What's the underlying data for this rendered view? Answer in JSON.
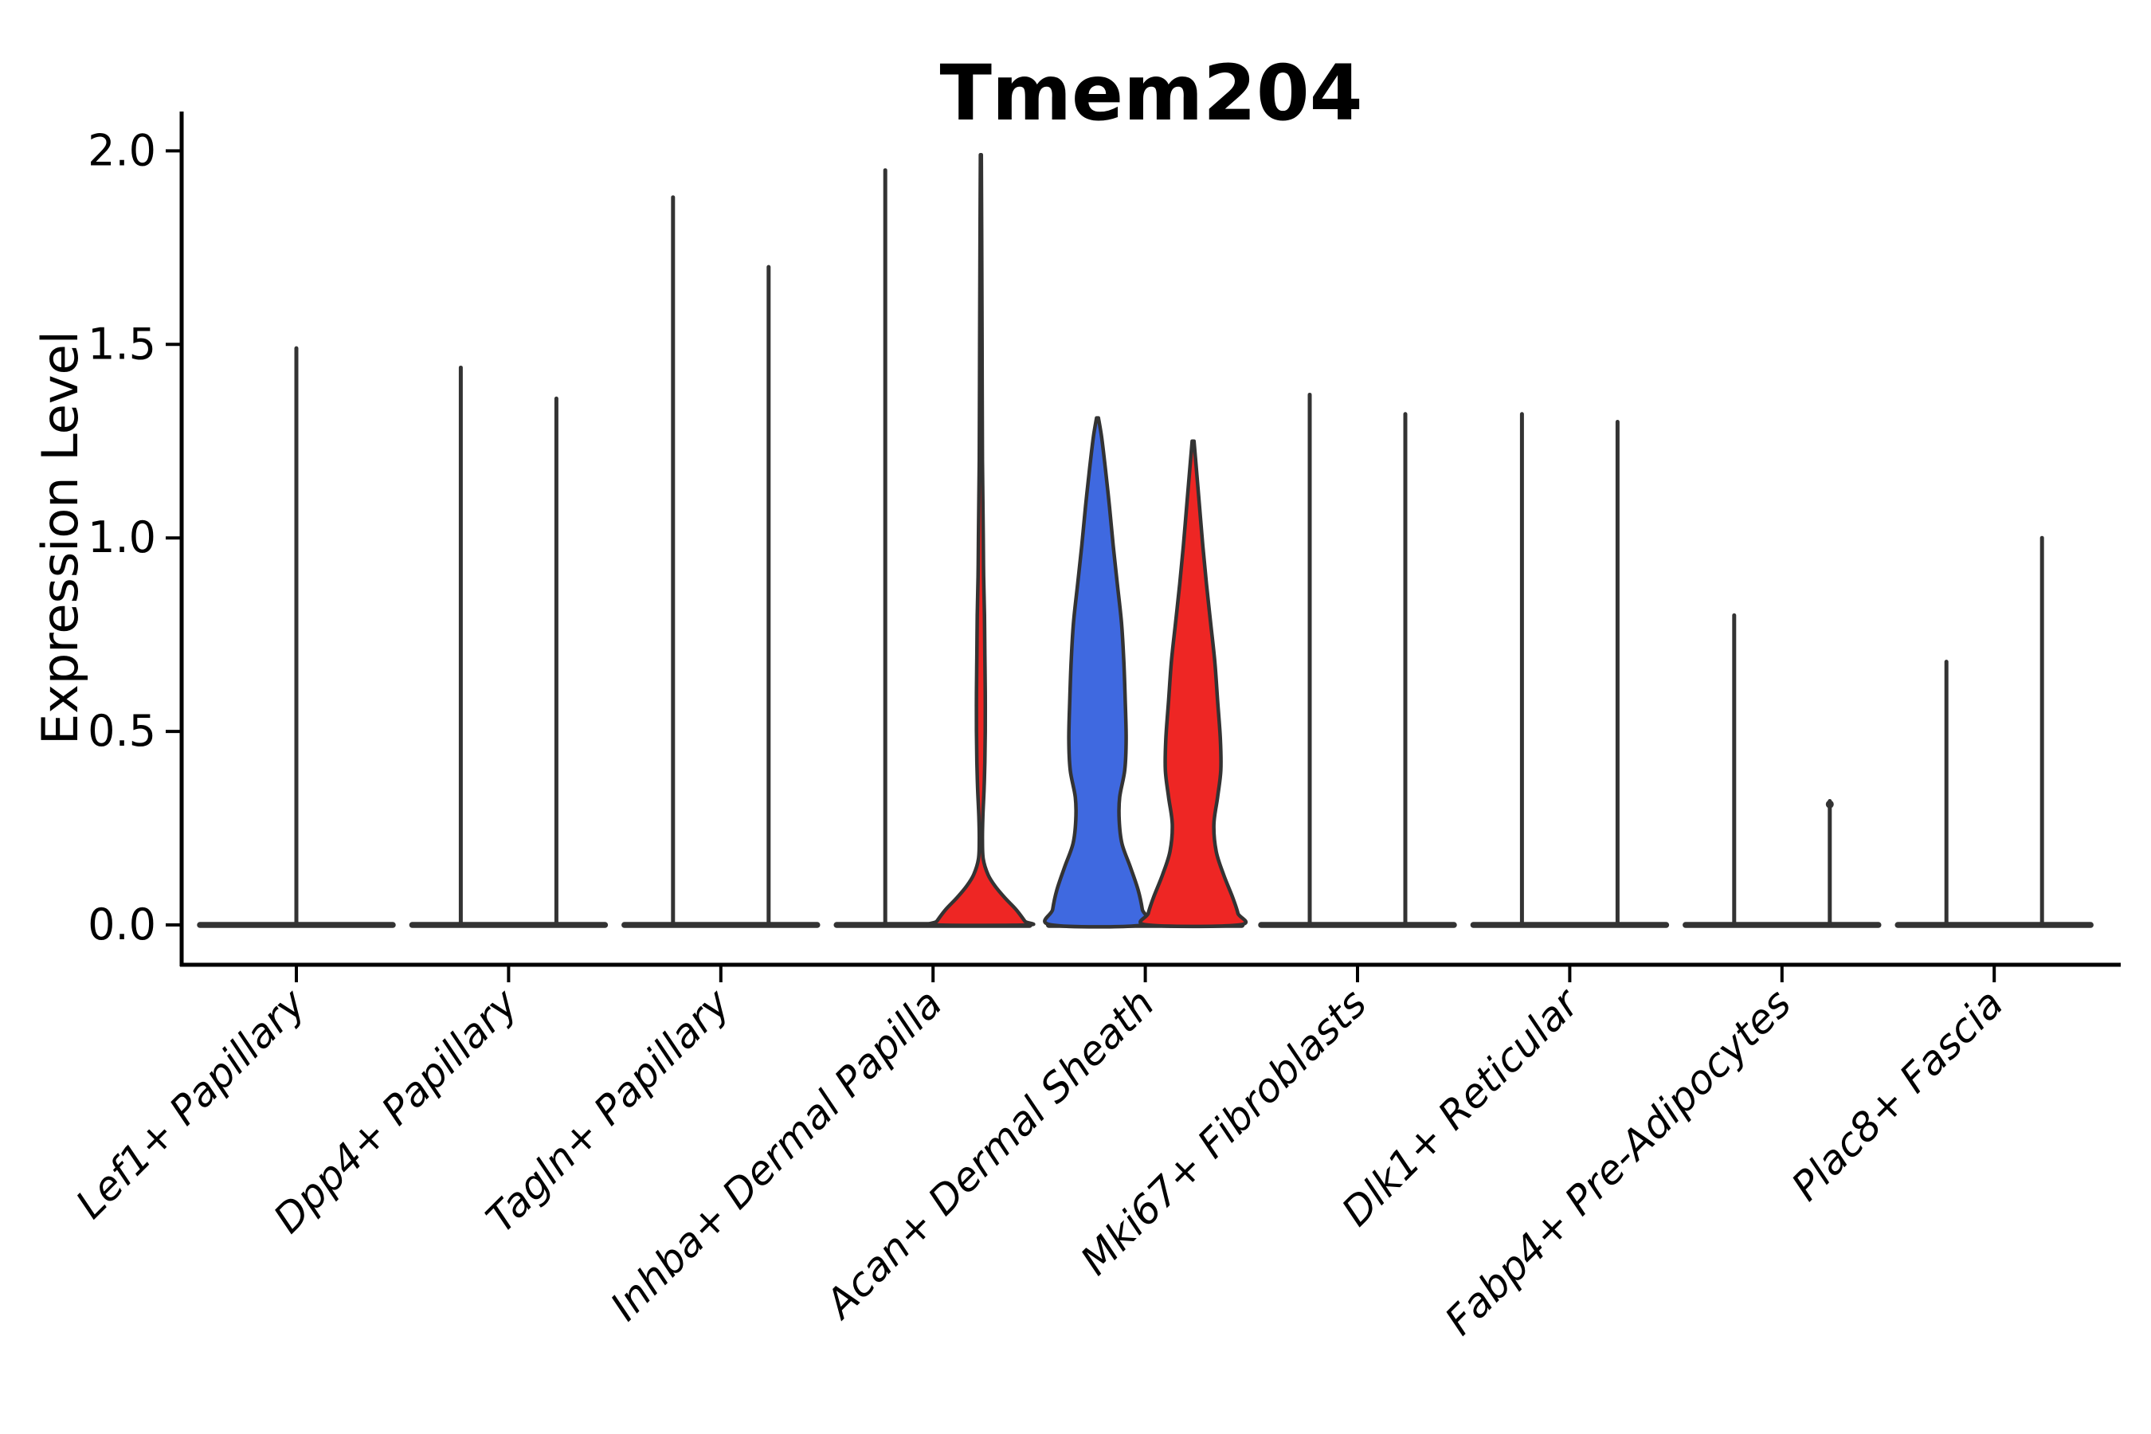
{
  "chart_data": {
    "type": "violin",
    "title": "Tmem204",
    "xlabel": "",
    "ylabel": "Expression Level",
    "ylim": [
      -0.1,
      2.1
    ],
    "yticks": [
      0.0,
      0.5,
      1.0,
      1.5,
      2.0
    ],
    "ytick_labels": [
      "0.0",
      "0.5",
      "1.0",
      "1.5",
      "2.0"
    ],
    "grid": false,
    "legend": "none",
    "colors": {
      "group1_fill": "#3F69E0",
      "group2_fill": "#EE2624",
      "violin_outline": "#333333",
      "axis": "#000000"
    },
    "categories": [
      {
        "label": "Lef1+ Papillary",
        "violins": [
          {
            "group": "group-1",
            "kind": "spike",
            "max": 1.49,
            "span": "full"
          }
        ]
      },
      {
        "label": "Dpp4+ Papillary",
        "violins": [
          {
            "group": "group-1",
            "kind": "spike",
            "max": 1.44
          },
          {
            "group": "group-2",
            "kind": "spike",
            "max": 1.36
          }
        ]
      },
      {
        "label": "Tagln+ Papillary",
        "violins": [
          {
            "group": "group-1",
            "kind": "spike",
            "max": 1.88
          },
          {
            "group": "group-2",
            "kind": "spike",
            "max": 1.7
          }
        ]
      },
      {
        "label": "Inhba+ Dermal Papilla",
        "violins": [
          {
            "group": "group-1",
            "kind": "spike",
            "max": 1.95
          },
          {
            "group": "group-2",
            "kind": "violin",
            "max": 1.99,
            "profile": "inhba_red"
          }
        ]
      },
      {
        "label": "Acan+ Dermal Sheath",
        "violins": [
          {
            "group": "group-1",
            "kind": "violin",
            "max": 1.31,
            "profile": "acan_blue"
          },
          {
            "group": "group-2",
            "kind": "violin",
            "max": 1.25,
            "profile": "acan_red"
          }
        ]
      },
      {
        "label": "Mki67+ Fibroblasts",
        "violins": [
          {
            "group": "group-1",
            "kind": "spike",
            "max": 1.37
          },
          {
            "group": "group-2",
            "kind": "spike",
            "max": 1.32
          }
        ]
      },
      {
        "label": "Dlk1+ Reticular",
        "violins": [
          {
            "group": "group-1",
            "kind": "spike",
            "max": 1.32
          },
          {
            "group": "group-2",
            "kind": "spike",
            "max": 1.3
          }
        ]
      },
      {
        "label": "Fabp4+ Pre-Adipocytes",
        "violins": [
          {
            "group": "group-1",
            "kind": "spike",
            "max": 0.8
          },
          {
            "group": "group-2",
            "kind": "spike",
            "max": 0.32,
            "tip_knob": true
          }
        ]
      },
      {
        "label": "Plac8+ Fascia",
        "violins": [
          {
            "group": "group-1",
            "kind": "spike",
            "max": 0.68
          },
          {
            "group": "group-2",
            "kind": "spike",
            "max": 1.0
          }
        ]
      }
    ],
    "violin_profiles": {
      "acan_blue": [
        [
          1.31,
          0.02
        ],
        [
          1.26,
          0.09
        ],
        [
          1.18,
          0.17
        ],
        [
          1.08,
          0.26
        ],
        [
          0.98,
          0.34
        ],
        [
          0.88,
          0.43
        ],
        [
          0.78,
          0.52
        ],
        [
          0.68,
          0.57
        ],
        [
          0.58,
          0.6
        ],
        [
          0.48,
          0.62
        ],
        [
          0.4,
          0.59
        ],
        [
          0.33,
          0.48
        ],
        [
          0.27,
          0.47
        ],
        [
          0.21,
          0.53
        ],
        [
          0.15,
          0.71
        ],
        [
          0.09,
          0.88
        ],
        [
          0.04,
          0.97
        ],
        [
          0.0,
          1.0
        ]
      ],
      "acan_red": [
        [
          1.25,
          0.02
        ],
        [
          1.18,
          0.07
        ],
        [
          1.08,
          0.14
        ],
        [
          0.98,
          0.21
        ],
        [
          0.88,
          0.29
        ],
        [
          0.78,
          0.38
        ],
        [
          0.68,
          0.47
        ],
        [
          0.58,
          0.53
        ],
        [
          0.48,
          0.59
        ],
        [
          0.4,
          0.6
        ],
        [
          0.33,
          0.53
        ],
        [
          0.26,
          0.45
        ],
        [
          0.19,
          0.5
        ],
        [
          0.13,
          0.66
        ],
        [
          0.07,
          0.86
        ],
        [
          0.03,
          0.97
        ],
        [
          0.0,
          1.0
        ]
      ],
      "inhba_red": [
        [
          1.99,
          0.01
        ],
        [
          1.8,
          0.017
        ],
        [
          1.5,
          0.026
        ],
        [
          1.2,
          0.034
        ],
        [
          1.0,
          0.052
        ],
        [
          0.9,
          0.06
        ],
        [
          0.8,
          0.078
        ],
        [
          0.7,
          0.086
        ],
        [
          0.6,
          0.095
        ],
        [
          0.5,
          0.095
        ],
        [
          0.42,
          0.086
        ],
        [
          0.35,
          0.069
        ],
        [
          0.28,
          0.043
        ],
        [
          0.22,
          0.034
        ],
        [
          0.17,
          0.052
        ],
        [
          0.13,
          0.155
        ],
        [
          0.1,
          0.31
        ],
        [
          0.07,
          0.52
        ],
        [
          0.04,
          0.76
        ],
        [
          0.01,
          0.95
        ],
        [
          0.0,
          1.0
        ]
      ]
    }
  }
}
